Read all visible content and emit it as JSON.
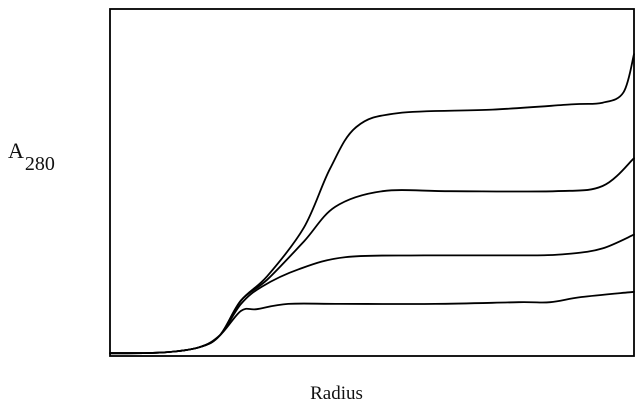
{
  "chart_data": {
    "type": "line",
    "title": "",
    "ylabel": {
      "main": "A",
      "sub": "280"
    },
    "xlabel": "Radius",
    "xlim": [
      0,
      100
    ],
    "ylim": [
      0,
      100
    ],
    "grid": false,
    "legend": "none",
    "line_color": "#000000",
    "series": [
      {
        "values": [
          {
            "x": 0,
            "y": 0.8
          },
          {
            "x": 10,
            "y": 1.0
          },
          {
            "x": 17,
            "y": 2.5
          },
          {
            "x": 21,
            "y": 6
          },
          {
            "x": 25,
            "y": 13
          },
          {
            "x": 28,
            "y": 13.5
          },
          {
            "x": 34,
            "y": 15
          },
          {
            "x": 44,
            "y": 15
          },
          {
            "x": 62,
            "y": 15
          },
          {
            "x": 78,
            "y": 15.5
          },
          {
            "x": 84,
            "y": 15.5
          },
          {
            "x": 90,
            "y": 17
          },
          {
            "x": 100,
            "y": 18.5
          }
        ]
      },
      {
        "values": [
          {
            "x": 0,
            "y": 0.8
          },
          {
            "x": 10,
            "y": 1.0
          },
          {
            "x": 17,
            "y": 2.5
          },
          {
            "x": 21,
            "y": 6
          },
          {
            "x": 25,
            "y": 15
          },
          {
            "x": 29,
            "y": 20
          },
          {
            "x": 36,
            "y": 25
          },
          {
            "x": 45,
            "y": 28.5
          },
          {
            "x": 60,
            "y": 29
          },
          {
            "x": 80,
            "y": 29
          },
          {
            "x": 88,
            "y": 29.5
          },
          {
            "x": 94,
            "y": 31
          },
          {
            "x": 100,
            "y": 35
          }
        ]
      },
      {
        "values": [
          {
            "x": 0,
            "y": 0.8
          },
          {
            "x": 10,
            "y": 1.0
          },
          {
            "x": 17,
            "y": 2.5
          },
          {
            "x": 21,
            "y": 6
          },
          {
            "x": 25,
            "y": 16
          },
          {
            "x": 30,
            "y": 22
          },
          {
            "x": 37,
            "y": 33
          },
          {
            "x": 43,
            "y": 43
          },
          {
            "x": 52,
            "y": 47.5
          },
          {
            "x": 65,
            "y": 47.5
          },
          {
            "x": 85,
            "y": 47.5
          },
          {
            "x": 94,
            "y": 49
          },
          {
            "x": 100,
            "y": 57
          }
        ]
      },
      {
        "values": [
          {
            "x": 0,
            "y": 0.8
          },
          {
            "x": 10,
            "y": 1.0
          },
          {
            "x": 17,
            "y": 2.5
          },
          {
            "x": 21,
            "y": 6
          },
          {
            "x": 25,
            "y": 16
          },
          {
            "x": 30,
            "y": 23
          },
          {
            "x": 37,
            "y": 37
          },
          {
            "x": 42,
            "y": 54
          },
          {
            "x": 47,
            "y": 66
          },
          {
            "x": 55,
            "y": 70
          },
          {
            "x": 73,
            "y": 71
          },
          {
            "x": 88,
            "y": 72.5
          },
          {
            "x": 94,
            "y": 73
          },
          {
            "x": 98,
            "y": 76
          },
          {
            "x": 100,
            "y": 87
          }
        ]
      }
    ]
  }
}
